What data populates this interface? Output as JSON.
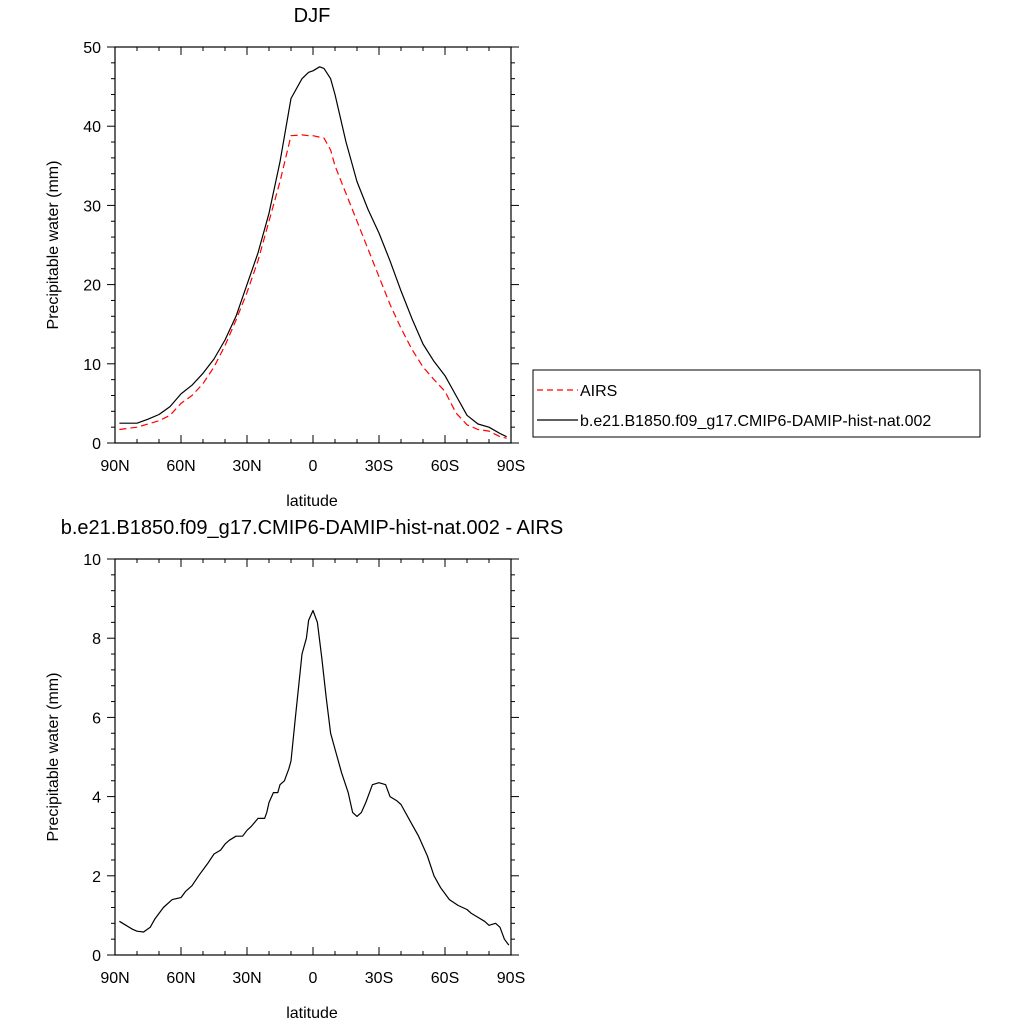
{
  "chart_data": [
    {
      "type": "line",
      "title": "DJF",
      "xlabel": "latitude",
      "ylabel": "Precipitable water (mm)",
      "xlim": [
        90,
        -90
      ],
      "ylim": [
        0,
        50
      ],
      "xticks": [
        90,
        60,
        30,
        0,
        -30,
        -60,
        -90
      ],
      "xtick_labels": [
        "90N",
        "60N",
        "30N",
        "0",
        "30S",
        "60S",
        "90S"
      ],
      "yticks": [
        0,
        10,
        20,
        30,
        40,
        50
      ],
      "ytick_labels": [
        "0",
        "10",
        "20",
        "30",
        "40",
        "50"
      ],
      "legend_position": "right",
      "series": [
        {
          "name": "AIRS",
          "color": "#ff0000",
          "style": "dashed",
          "x": [
            88,
            80,
            75,
            70,
            65,
            60,
            55,
            50,
            45,
            40,
            35,
            30,
            25,
            20,
            15,
            10,
            5,
            2,
            0,
            -5,
            -8,
            -10,
            -15,
            -20,
            -25,
            -30,
            -35,
            -40,
            -45,
            -50,
            -55,
            -60,
            -65,
            -70,
            -75,
            -80,
            -85,
            -88
          ],
          "y": [
            1.7,
            2.0,
            2.4,
            2.8,
            3.5,
            5.0,
            6.0,
            7.5,
            9.6,
            12.3,
            15.5,
            19.0,
            23.0,
            28.0,
            33.0,
            38.8,
            38.9,
            38.8,
            38.8,
            38.5,
            37.0,
            35.0,
            31.5,
            28.0,
            24.5,
            21.0,
            17.5,
            14.5,
            11.8,
            9.6,
            8.0,
            6.5,
            3.8,
            2.3,
            1.7,
            1.5,
            0.8,
            0.6
          ]
        },
        {
          "name": "b.e21.B1850.f09_g17.CMIP6-DAMIP-hist-nat.002",
          "color": "#000000",
          "style": "solid",
          "x": [
            88,
            80,
            75,
            70,
            65,
            60,
            55,
            50,
            45,
            40,
            35,
            30,
            25,
            20,
            15,
            10,
            5,
            2,
            0,
            -3,
            -5,
            -8,
            -10,
            -15,
            -20,
            -25,
            -30,
            -35,
            -40,
            -45,
            -50,
            -55,
            -60,
            -65,
            -70,
            -75,
            -80,
            -85,
            -88
          ],
          "y": [
            2.5,
            2.5,
            3.0,
            3.6,
            4.6,
            6.2,
            7.3,
            8.8,
            10.6,
            13.0,
            16.0,
            20.0,
            24.0,
            29.0,
            35.5,
            43.5,
            46.0,
            46.8,
            47.0,
            47.5,
            47.3,
            46.0,
            44.0,
            38.0,
            33.0,
            29.5,
            26.5,
            23.0,
            19.2,
            15.7,
            12.5,
            10.3,
            8.5,
            6.0,
            3.5,
            2.4,
            2.0,
            1.2,
            0.8
          ]
        }
      ]
    },
    {
      "type": "line",
      "title": "b.e21.B1850.f09_g17.CMIP6-DAMIP-hist-nat.002 - AIRS",
      "xlabel": "latitude",
      "ylabel": "Precipitable water (mm)",
      "xlim": [
        90,
        -90
      ],
      "ylim": [
        0,
        10
      ],
      "xticks": [
        90,
        60,
        30,
        0,
        -30,
        -60,
        -90
      ],
      "xtick_labels": [
        "90N",
        "60N",
        "30N",
        "0",
        "30S",
        "60S",
        "90S"
      ],
      "yticks": [
        0,
        2,
        4,
        6,
        8,
        10
      ],
      "ytick_labels": [
        "0",
        "2",
        "4",
        "6",
        "8",
        "10"
      ],
      "series": [
        {
          "color": "#000000",
          "style": "solid",
          "x": [
            88,
            85,
            82,
            80,
            77,
            74,
            72,
            68,
            64,
            60,
            58,
            55,
            52,
            48,
            45,
            42,
            40,
            38,
            35,
            32,
            30,
            28,
            25,
            22,
            21,
            20,
            18,
            16,
            15,
            13,
            11,
            10,
            8,
            5,
            3,
            2,
            0,
            -2,
            -4,
            -6,
            -8,
            -10,
            -13,
            -16,
            -18,
            -20,
            -22,
            -24,
            -27,
            -30,
            -33,
            -35,
            -38,
            -40,
            -44,
            -48,
            -52,
            -55,
            -58,
            -62,
            -66,
            -70,
            -72,
            -75,
            -78,
            -80,
            -83,
            -85,
            -87,
            -89
          ],
          "y": [
            0.85,
            0.75,
            0.65,
            0.6,
            0.58,
            0.7,
            0.9,
            1.2,
            1.4,
            1.45,
            1.6,
            1.75,
            2.0,
            2.3,
            2.55,
            2.65,
            2.8,
            2.9,
            3.0,
            3.0,
            3.15,
            3.25,
            3.45,
            3.45,
            3.6,
            3.85,
            4.1,
            4.1,
            4.3,
            4.4,
            4.7,
            4.9,
            6.0,
            7.6,
            8.0,
            8.45,
            8.7,
            8.4,
            7.5,
            6.5,
            5.6,
            5.2,
            4.6,
            4.1,
            3.6,
            3.5,
            3.6,
            3.85,
            4.3,
            4.35,
            4.3,
            4.0,
            3.9,
            3.8,
            3.4,
            3.0,
            2.5,
            2.0,
            1.7,
            1.4,
            1.25,
            1.15,
            1.05,
            0.95,
            0.85,
            0.75,
            0.8,
            0.7,
            0.4,
            0.25
          ]
        }
      ]
    }
  ]
}
